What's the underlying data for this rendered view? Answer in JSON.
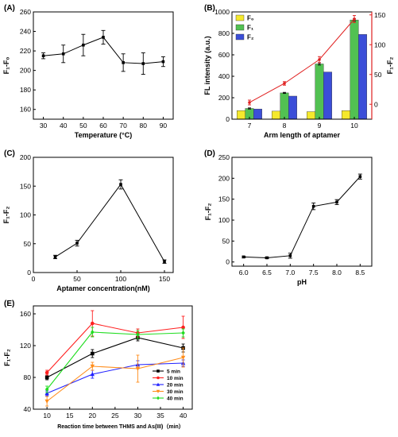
{
  "chart_data": [
    {
      "panel": "(A)",
      "type": "line",
      "xlabel": "Temperature (°C)",
      "ylabel": "F₁-F₀",
      "x": [
        30,
        40,
        50,
        60,
        70,
        80,
        90
      ],
      "xticks": [
        30,
        40,
        50,
        60,
        70,
        80,
        90
      ],
      "series": [
        {
          "values": [
            215,
            217,
            226,
            234,
            208,
            207,
            209
          ],
          "errors": [
            3,
            9,
            11,
            7,
            9,
            11,
            5
          ]
        }
      ],
      "xlim": [
        25,
        95
      ],
      "ylim": [
        150,
        260
      ],
      "yticks": [
        160,
        180,
        200,
        220,
        240,
        260
      ],
      "colors": {
        "line": "#000000"
      },
      "grid": false
    },
    {
      "panel": "(B)",
      "type": "bar",
      "xlabel": "Arm length of aptamer",
      "ylabel": "FL intensity (a.u.)",
      "y2label": "F₁-F₂",
      "categories": [
        "7",
        "8",
        "9",
        "10"
      ],
      "series": [
        {
          "name": "F₀",
          "values": [
            80,
            75,
            70,
            80
          ],
          "color": "#f5e92c"
        },
        {
          "name": "F₁",
          "values": [
            100,
            245,
            515,
            925
          ],
          "errors": [
            5,
            5,
            10,
            10
          ],
          "color": "#52c152"
        },
        {
          "name": "F₂",
          "values": [
            95,
            215,
            440,
            790
          ],
          "color": "#3b4ed8"
        }
      ],
      "line_series": {
        "values": [
          3,
          35,
          75,
          143
        ],
        "errors": [
          4,
          3,
          5,
          6
        ],
        "color": "#e02020",
        "axis": "right"
      },
      "ylim": [
        0,
        1000
      ],
      "yticks": [
        0,
        200,
        400,
        600,
        800,
        1000
      ],
      "y2lim": [
        -25,
        155
      ],
      "y2ticks": [
        0,
        50,
        100,
        150
      ],
      "legend_position": "top-left",
      "grid": false
    },
    {
      "panel": "(C)",
      "type": "line",
      "xlabel": "Aptamer concentration(nM)",
      "ylabel": "F₁-F₂",
      "x": [
        25,
        50,
        100,
        150
      ],
      "xticks": [
        0,
        50,
        100,
        150
      ],
      "series": [
        {
          "values": [
            27,
            51,
            153,
            19
          ],
          "errors": [
            3,
            5,
            8,
            3
          ]
        }
      ],
      "xlim": [
        0,
        160
      ],
      "ylim": [
        0,
        200
      ],
      "yticks": [
        0,
        50,
        100,
        150,
        200
      ],
      "colors": {
        "line": "#000000"
      },
      "grid": false
    },
    {
      "panel": "(D)",
      "type": "line",
      "xlabel": "pH",
      "ylabel": "F₁-F₂",
      "x": [
        6.0,
        6.5,
        7.0,
        7.5,
        8.0,
        8.5
      ],
      "xticks": [
        "6.0",
        "6.5",
        "7.0",
        "7.5",
        "8.0",
        "8.5"
      ],
      "series": [
        {
          "values": [
            12,
            10,
            15,
            133,
            143,
            204
          ],
          "errors": [
            2,
            2,
            6,
            8,
            6,
            6
          ]
        }
      ],
      "xlim": [
        5.75,
        8.75
      ],
      "ylim": [
        -10,
        250
      ],
      "yticks": [
        0,
        50,
        100,
        150,
        200,
        250
      ],
      "colors": {
        "line": "#000000"
      },
      "grid": false
    },
    {
      "panel": "(E)",
      "type": "line",
      "xlabel": "Reaction time between THMS and As(III)（min）",
      "ylabel": "F₁-F₂",
      "x": [
        10,
        20,
        30,
        40
      ],
      "xticks": [
        10,
        15,
        20,
        25,
        30,
        35,
        40
      ],
      "series": [
        {
          "name": "5 min",
          "values": [
            80,
            110,
            130,
            117
          ],
          "errors": [
            3,
            5,
            4,
            5
          ],
          "color": "#000000",
          "marker": "square"
        },
        {
          "name": "10 min",
          "values": [
            86,
            148,
            136,
            143
          ],
          "errors": [
            3,
            16,
            5,
            14
          ],
          "color": "#ff2020",
          "marker": "circle"
        },
        {
          "name": "20 min",
          "values": [
            60,
            84,
            96,
            98
          ],
          "errors": [
            3,
            5,
            5,
            4
          ],
          "color": "#2020ff",
          "marker": "triangle-up"
        },
        {
          "name": "30 min",
          "values": [
            50,
            94,
            91,
            105
          ],
          "errors": [
            6,
            5,
            17,
            12
          ],
          "color": "#ff8c1a",
          "marker": "triangle-down"
        },
        {
          "name": "40 min",
          "values": [
            65,
            137,
            134,
            136
          ],
          "errors": [
            4,
            6,
            5,
            5
          ],
          "color": "#20dd20",
          "marker": "diamond"
        }
      ],
      "xlim": [
        7,
        42
      ],
      "ylim": [
        40,
        170
      ],
      "yticks": [
        40,
        80,
        120,
        160
      ],
      "legend_position": "bottom-right",
      "grid": false
    }
  ]
}
